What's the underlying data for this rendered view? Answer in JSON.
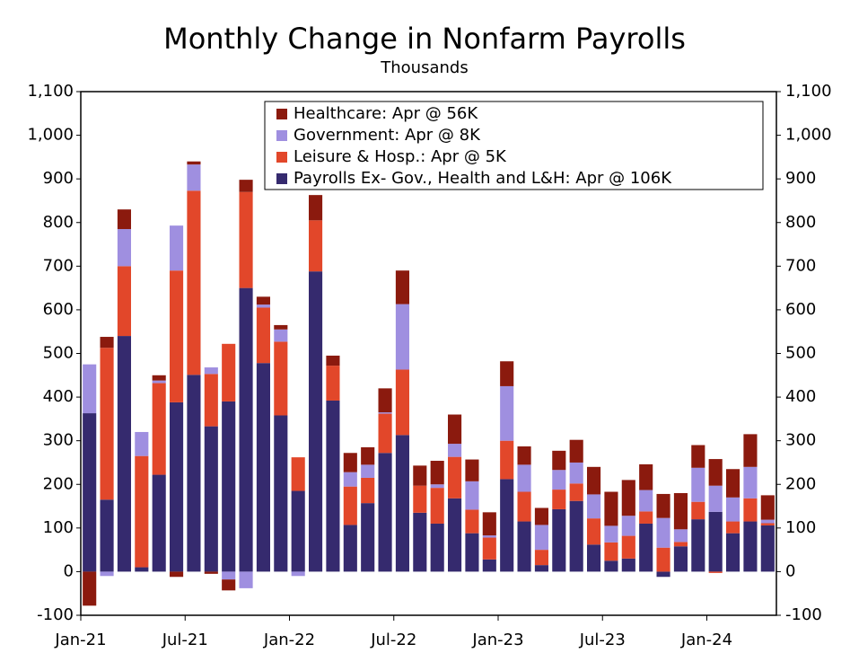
{
  "chart_data": {
    "type": "bar",
    "stacked": true,
    "title": "Monthly Change in Nonfarm Payrolls",
    "subtitle": "Thousands",
    "categories": [
      "Jan-21",
      null,
      null,
      null,
      null,
      null,
      "Jul-21",
      null,
      null,
      null,
      null,
      null,
      "Jan-22",
      null,
      null,
      null,
      null,
      null,
      "Jul-22",
      null,
      null,
      null,
      null,
      null,
      "Jan-23",
      null,
      null,
      null,
      null,
      null,
      "Jul-23",
      null,
      null,
      null,
      null,
      null,
      "Jan-24",
      null,
      null,
      null
    ],
    "series": [
      {
        "name": "Healthcare: Apr @ 56K",
        "color": "#8b1a0e",
        "values": [
          -78,
          25,
          45,
          0,
          12,
          -12,
          7,
          -5,
          -25,
          28,
          18,
          10,
          0,
          58,
          23,
          44,
          40,
          55,
          77,
          46,
          54,
          67,
          50,
          53,
          57,
          42,
          39,
          44,
          52,
          63,
          78,
          82,
          59,
          55,
          83,
          52,
          61,
          65,
          75,
          56
        ]
      },
      {
        "name": "Government: Apr @ 8K",
        "color": "#9f8fe0",
        "values": [
          112,
          -10,
          85,
          55,
          6,
          103,
          60,
          15,
          -18,
          -38,
          7,
          28,
          -10,
          0,
          0,
          33,
          30,
          3,
          150,
          0,
          8,
          30,
          65,
          5,
          125,
          62,
          57,
          45,
          48,
          55,
          38,
          46,
          49,
          68,
          29,
          78,
          60,
          55,
          72,
          8
        ]
      },
      {
        "name": "Leisure & Hosp.: Apr @ 5K",
        "color": "#e2472a",
        "values": [
          0,
          348,
          160,
          255,
          210,
          302,
          422,
          120,
          132,
          220,
          127,
          169,
          77,
          117,
          80,
          88,
          58,
          90,
          150,
          62,
          82,
          95,
          54,
          50,
          88,
          68,
          35,
          45,
          40,
          60,
          42,
          52,
          28,
          55,
          10,
          40,
          -3,
          27,
          53,
          5
        ]
      },
      {
        "name": "Payrolls Ex- Gov., Health and L&H: Apr @ 106K",
        "color": "#352a6e",
        "values": [
          363,
          165,
          540,
          10,
          222,
          388,
          451,
          333,
          390,
          650,
          478,
          358,
          185,
          688,
          392,
          107,
          157,
          272,
          313,
          135,
          110,
          168,
          88,
          28,
          212,
          115,
          15,
          143,
          162,
          62,
          25,
          30,
          110,
          -12,
          58,
          120,
          137,
          88,
          115,
          106
        ]
      }
    ],
    "ylim": [
      -100,
      1100
    ],
    "yticks": [
      -100,
      0,
      100,
      200,
      300,
      400,
      500,
      600,
      700,
      800,
      900,
      {
        "value": 1000,
        "label": "1,000"
      },
      {
        "value": 1100,
        "label": "1,100"
      }
    ],
    "y2lim": [
      -100,
      1100
    ],
    "y2ticks": [
      -100,
      0,
      100,
      200,
      300,
      400,
      500,
      600,
      700,
      800,
      900,
      {
        "value": 1000,
        "label": "1,000"
      },
      {
        "value": 1100,
        "label": "1,100"
      }
    ],
    "legend": "top"
  }
}
